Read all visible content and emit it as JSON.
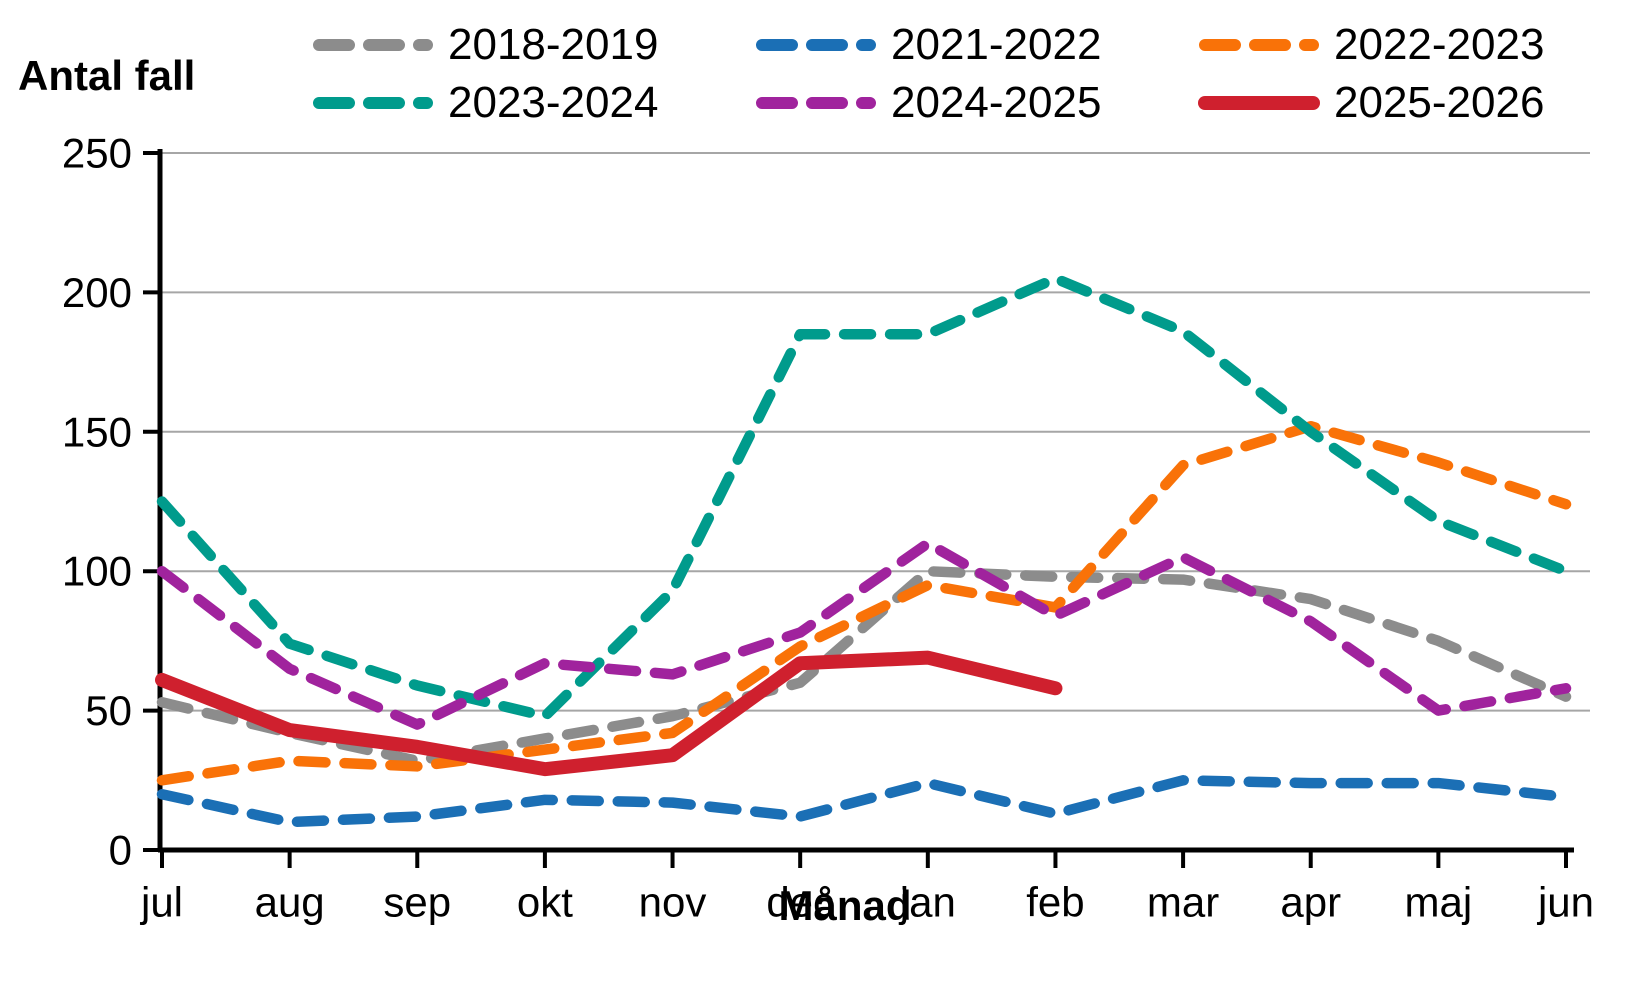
{
  "chart": {
    "y_axis_title": "Antal fall",
    "x_axis_label": "Månad"
  },
  "chart_data": {
    "type": "line",
    "title": "",
    "xlabel": "Månad",
    "ylabel": "Antal fall",
    "x": [
      "jul",
      "aug",
      "sep",
      "okt",
      "nov",
      "dec",
      "jan",
      "feb",
      "mar",
      "apr",
      "maj",
      "jun"
    ],
    "ylim": [
      0,
      250
    ],
    "y_ticks": [
      0,
      50,
      100,
      150,
      200,
      250
    ],
    "grid": "horizontal",
    "legend_position": "top",
    "colors": {
      "gridline": "#a6a6a6",
      "axis": "#000000",
      "text": "#000000"
    },
    "series": [
      {
        "name": "2018-2019",
        "color": "#8C8C8C",
        "style": "dashed",
        "values": [
          53,
          42,
          32,
          40,
          48,
          60,
          100,
          98,
          97,
          90,
          75,
          55
        ]
      },
      {
        "name": "2021-2022",
        "color": "#1B6FB5",
        "style": "dashed",
        "values": [
          20,
          10,
          12,
          18,
          17,
          12,
          24,
          13,
          25,
          24,
          24,
          19
        ]
      },
      {
        "name": "2022-2023",
        "color": "#F97208",
        "style": "dashed",
        "values": [
          25,
          32,
          30,
          36,
          42,
          73,
          95,
          87,
          138,
          152,
          139,
          124
        ]
      },
      {
        "name": "2023-2024",
        "color": "#009B8C",
        "style": "dashed",
        "values": [
          125,
          74,
          59,
          48,
          93,
          185,
          185,
          205,
          186,
          150,
          118,
          100
        ]
      },
      {
        "name": "2024-2025",
        "color": "#A0239D",
        "style": "dashed",
        "values": [
          100,
          65,
          45,
          67,
          63,
          78,
          110,
          84,
          105,
          82,
          50,
          58
        ]
      },
      {
        "name": "2025-2026",
        "color": "#CF202E",
        "style": "solid",
        "values": [
          61,
          43,
          37,
          29,
          34,
          67,
          69,
          58,
          null,
          null,
          null,
          null
        ]
      }
    ]
  }
}
